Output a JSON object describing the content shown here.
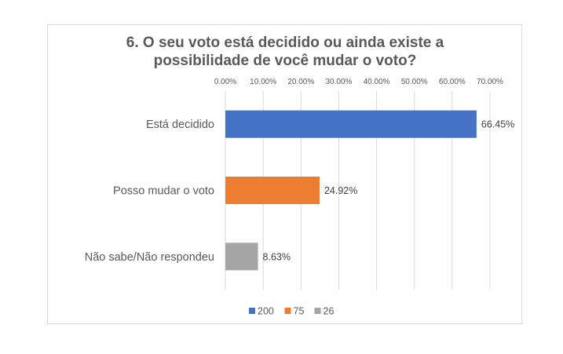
{
  "chart_data": {
    "type": "bar",
    "orientation": "horizontal",
    "title": "6. O seu voto está decidido ou ainda existe a possibilidade de você mudar o voto?",
    "title_lines": [
      "6. O seu voto está decidido ou ainda existe a",
      "possibilidade de você mudar o voto?"
    ],
    "categories": [
      "Está decidido",
      "Posso mudar o voto",
      "Não sabe/Não respondeu"
    ],
    "values": [
      66.45,
      24.92,
      8.63
    ],
    "data_labels": [
      "66.45%",
      "24.92%",
      "8.63%"
    ],
    "colors": [
      "#4472c4",
      "#ed7d31",
      "#a5a5a5"
    ],
    "xlim": [
      0,
      70
    ],
    "x_ticks": [
      "0.00%",
      "10.00%",
      "20.00%",
      "30.00%",
      "40.00%",
      "50.00%",
      "60.00%",
      "70.00%"
    ],
    "x_axis_position": "top",
    "grid": true,
    "legend": {
      "position": "bottom",
      "entries": [
        {
          "label": "200",
          "color": "#4472c4"
        },
        {
          "label": "75",
          "color": "#ed7d31"
        },
        {
          "label": "26",
          "color": "#a5a5a5"
        }
      ]
    }
  }
}
